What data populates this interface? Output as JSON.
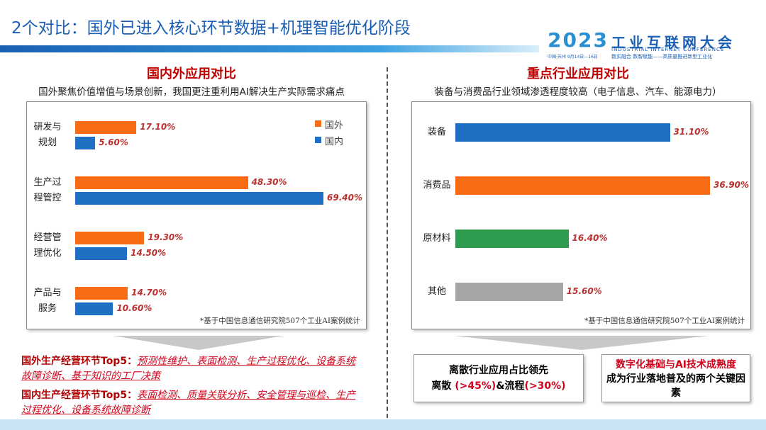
{
  "header": {
    "title": "2个对比：国外已进入核心环节数据+机理智能优化阶段",
    "logo_year": "2023",
    "logo_name": "工业互联网大会",
    "logo_en": "INDUSTRIAL INTERNET CONFERENCE",
    "logo_date": "中国·苏州 9月14日—16日",
    "logo_slogan": "数实融合 数智赋能——高质量推进新型工业化"
  },
  "chart_data": [
    {
      "type": "bar",
      "orientation": "horizontal",
      "title": "国内外应用对比",
      "subtitle": "国外聚焦价值增值与场景创新，我国更注重利用AI解决生产实际需求痛点",
      "categories": [
        "研发与规划",
        "生产过程管控",
        "经营管理优化",
        "产品与服务"
      ],
      "series": [
        {
          "name": "国外",
          "color": "#f76b15",
          "values": [
            17.1,
            48.3,
            19.3,
            14.7
          ],
          "value_labels": [
            "17.10%",
            "48.30%",
            "19.30%",
            "14.70%"
          ]
        },
        {
          "name": "国内",
          "color": "#1f6fc5",
          "values": [
            5.6,
            69.4,
            14.5,
            10.6
          ],
          "value_labels": [
            "5.60%",
            "69.40%",
            "14.50%",
            "10.60%"
          ]
        }
      ],
      "legend": "top-right",
      "note": "*基于中国信息通信研究院507个工业AI案例统计"
    },
    {
      "type": "bar",
      "orientation": "horizontal",
      "title": "重点行业应用对比",
      "subtitle": "装备与消费品行业领域渗透程度较高（电子信息、汽车、能源电力）",
      "categories": [
        "装备",
        "消费品",
        "原材料",
        "其他"
      ],
      "values": [
        31.1,
        36.9,
        16.4,
        15.6
      ],
      "value_labels": [
        "31.10%",
        "36.90%",
        "16.40%",
        "15.60%"
      ],
      "colors": [
        "#1f6fc5",
        "#f76b15",
        "#2e9b4e",
        "#a6a6a6"
      ],
      "note": "*基于中国信息通信研究院507个工业AI案例统计"
    }
  ],
  "left_notes": [
    {
      "label": "国外生产经营环节Top5：",
      "text": "预测性维护、表面检测、生产过程优化、设备系统故障诊断、基于知识的工厂决策"
    },
    {
      "label": "国内生产经营环节Top5：",
      "text": "表面检测、质量关联分析、安全管理与巡检、生产过程优化、设备系统故障诊断"
    }
  ],
  "right_boxes": [
    {
      "title": "离散行业应用占比领先",
      "parts": [
        "离散 ",
        "(>45%)",
        "&流程",
        "(>30%)"
      ]
    },
    {
      "title": "数字化基础与AI技术成熟度",
      "text": "成为行业落地普及的两个关键因素"
    }
  ]
}
